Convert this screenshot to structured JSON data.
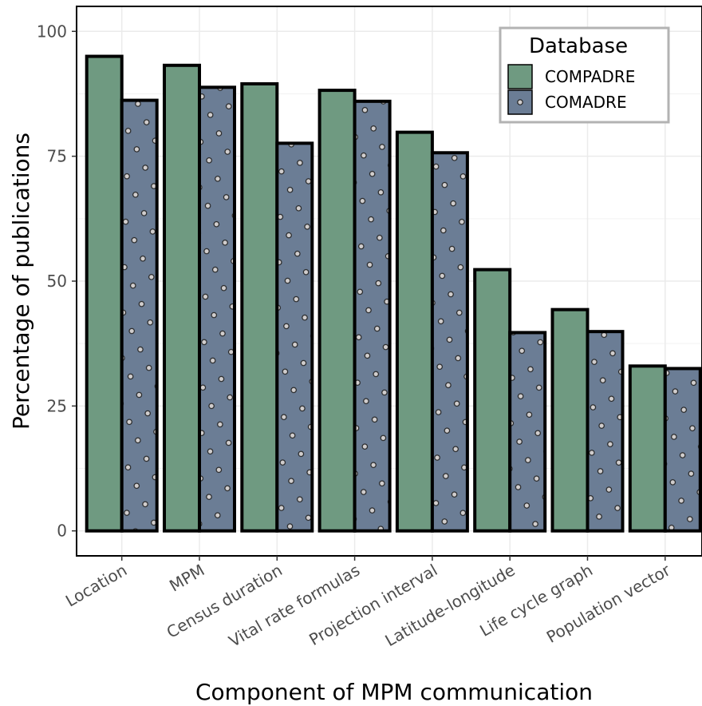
{
  "chart_data": {
    "type": "bar",
    "xlabel": "Component of MPM communication",
    "ylabel": "Percentage of publications",
    "ylim": [
      -5,
      105
    ],
    "yticks": [
      0,
      25,
      50,
      75,
      100
    ],
    "grid": true,
    "legend": {
      "title": "Database",
      "position": "top-right"
    },
    "categories": [
      "Location",
      "MPM",
      "Census duration",
      "Vital rate formulas",
      "Projection interval",
      "Latitude-longitude",
      "Life cycle graph",
      "Population vector"
    ],
    "series": [
      {
        "name": "COMPADRE",
        "color": "#6f9a81",
        "pattern": "none",
        "values": [
          95,
          93.2,
          89.5,
          88.2,
          79.8,
          52.3,
          44.3,
          33
        ]
      },
      {
        "name": "COMADRE",
        "color": "#6b7d95",
        "pattern": "dots",
        "values": [
          86.2,
          88.8,
          77.6,
          86,
          75.7,
          39.7,
          39.9,
          32.5
        ]
      }
    ]
  }
}
